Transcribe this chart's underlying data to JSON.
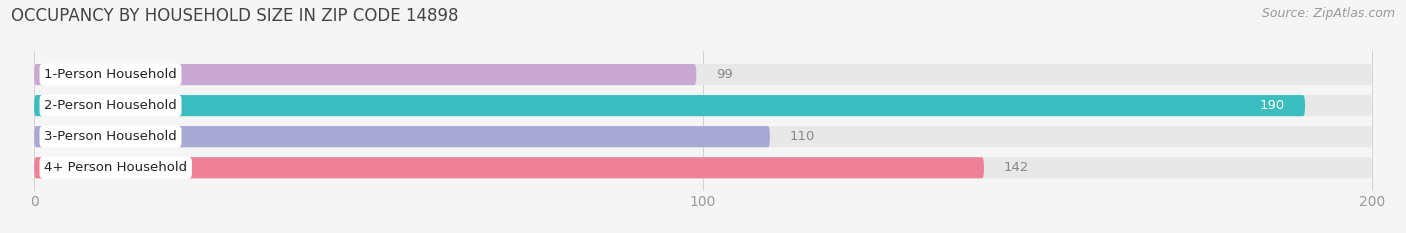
{
  "title": "OCCUPANCY BY HOUSEHOLD SIZE IN ZIP CODE 14898",
  "source": "Source: ZipAtlas.com",
  "categories": [
    "1-Person Household",
    "2-Person Household",
    "3-Person Household",
    "4+ Person Household"
  ],
  "values": [
    99,
    190,
    110,
    142
  ],
  "bar_colors": [
    "#C9A8D4",
    "#3BBCBE",
    "#A8A8D4",
    "#F08098"
  ],
  "track_color": "#E8E8E8",
  "xlim": [
    0,
    200
  ],
  "xticks": [
    0,
    100,
    200
  ],
  "background_color": "#F5F5F5",
  "bar_height": 0.68,
  "title_fontsize": 12,
  "source_fontsize": 9,
  "label_fontsize": 9.5,
  "value_fontsize": 9.5,
  "tick_fontsize": 10,
  "inside_threshold": 170,
  "rounding_size": 0.3
}
